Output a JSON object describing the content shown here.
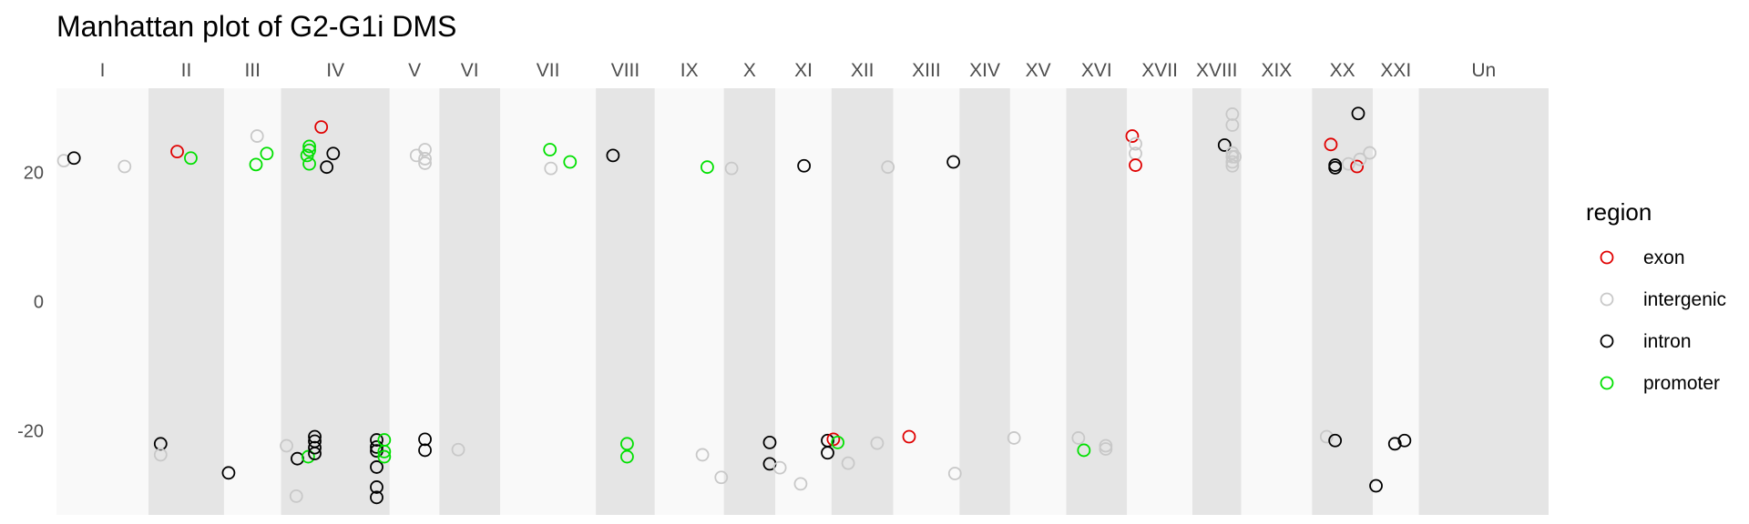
{
  "chart_data": {
    "type": "scatter",
    "title": "Manhattan plot of G2-G1i DMS",
    "xlabel": "",
    "ylabel": "",
    "ylim": [
      -33,
      33
    ],
    "yticks": [
      -20,
      0,
      20
    ],
    "grid": false,
    "legend_position": "right",
    "legend_title": "region",
    "legend": [
      {
        "name": "exon",
        "color": "#e00000"
      },
      {
        "name": "intergenic",
        "color": "#c8c8c8"
      },
      {
        "name": "intron",
        "color": "#000000"
      },
      {
        "name": "promoter",
        "color": "#00e000"
      }
    ],
    "panels": [
      {
        "label": "I",
        "width": 1.0
      },
      {
        "label": "II",
        "width": 0.82
      },
      {
        "label": "III",
        "width": 0.62
      },
      {
        "label": "IV",
        "width": 1.18
      },
      {
        "label": "V",
        "width": 0.54
      },
      {
        "label": "VI",
        "width": 0.66
      },
      {
        "label": "VII",
        "width": 1.04
      },
      {
        "label": "VIII",
        "width": 0.64
      },
      {
        "label": "IX",
        "width": 0.75
      },
      {
        "label": "X",
        "width": 0.56
      },
      {
        "label": "XI",
        "width": 0.61
      },
      {
        "label": "XII",
        "width": 0.67
      },
      {
        "label": "XIII",
        "width": 0.72
      },
      {
        "label": "XIV",
        "width": 0.55
      },
      {
        "label": "XV",
        "width": 0.61
      },
      {
        "label": "XVI",
        "width": 0.66
      },
      {
        "label": "XVII",
        "width": 0.71
      },
      {
        "label": "XVIII",
        "width": 0.53
      },
      {
        "label": "XIX",
        "width": 0.77
      },
      {
        "label": "XX",
        "width": 0.66
      },
      {
        "label": "XXI",
        "width": 0.5
      },
      {
        "label": "Un",
        "width": 1.41
      }
    ],
    "points": [
      {
        "chr": "I",
        "pos": 0.08,
        "y": 21.8,
        "region": "intergenic"
      },
      {
        "chr": "I",
        "pos": 0.19,
        "y": 22.2,
        "region": "intron"
      },
      {
        "chr": "I",
        "pos": 0.74,
        "y": 20.9,
        "region": "intergenic"
      },
      {
        "chr": "II",
        "pos": 0.38,
        "y": 23.2,
        "region": "exon"
      },
      {
        "chr": "II",
        "pos": 0.56,
        "y": 22.2,
        "region": "promoter"
      },
      {
        "chr": "II",
        "pos": 0.16,
        "y": -22.0,
        "region": "intron"
      },
      {
        "chr": "II",
        "pos": 0.16,
        "y": -23.7,
        "region": "intergenic"
      },
      {
        "chr": "III",
        "pos": 0.58,
        "y": 25.6,
        "region": "intergenic"
      },
      {
        "chr": "III",
        "pos": 0.75,
        "y": 22.9,
        "region": "promoter"
      },
      {
        "chr": "III",
        "pos": 0.56,
        "y": 21.2,
        "region": "promoter"
      },
      {
        "chr": "III",
        "pos": 0.08,
        "y": -26.5,
        "region": "intron"
      },
      {
        "chr": "IV",
        "pos": 0.37,
        "y": 27.0,
        "region": "exon"
      },
      {
        "chr": "IV",
        "pos": 0.26,
        "y": 24.0,
        "region": "promoter"
      },
      {
        "chr": "IV",
        "pos": 0.26,
        "y": 23.4,
        "region": "promoter"
      },
      {
        "chr": "IV",
        "pos": 0.24,
        "y": 22.6,
        "region": "promoter"
      },
      {
        "chr": "IV",
        "pos": 0.26,
        "y": 21.3,
        "region": "promoter"
      },
      {
        "chr": "IV",
        "pos": 0.42,
        "y": 20.8,
        "region": "intron"
      },
      {
        "chr": "IV",
        "pos": 0.48,
        "y": 22.9,
        "region": "intron"
      },
      {
        "chr": "IV",
        "pos": 0.05,
        "y": -22.3,
        "region": "intergenic"
      },
      {
        "chr": "IV",
        "pos": 0.15,
        "y": -24.3,
        "region": "intron"
      },
      {
        "chr": "IV",
        "pos": 0.25,
        "y": -24.0,
        "region": "promoter"
      },
      {
        "chr": "IV",
        "pos": 0.14,
        "y": -30.1,
        "region": "intergenic"
      },
      {
        "chr": "IV",
        "pos": 0.31,
        "y": -20.9,
        "region": "intron"
      },
      {
        "chr": "IV",
        "pos": 0.31,
        "y": -21.6,
        "region": "intron"
      },
      {
        "chr": "IV",
        "pos": 0.31,
        "y": -22.6,
        "region": "intron"
      },
      {
        "chr": "IV",
        "pos": 0.31,
        "y": -23.5,
        "region": "intron"
      },
      {
        "chr": "IV",
        "pos": 0.88,
        "y": -21.4,
        "region": "intron"
      },
      {
        "chr": "IV",
        "pos": 0.88,
        "y": -22.5,
        "region": "intron"
      },
      {
        "chr": "IV",
        "pos": 0.88,
        "y": -23.1,
        "region": "intron"
      },
      {
        "chr": "IV",
        "pos": 0.88,
        "y": -25.6,
        "region": "intron"
      },
      {
        "chr": "IV",
        "pos": 0.88,
        "y": -28.7,
        "region": "intron"
      },
      {
        "chr": "IV",
        "pos": 0.88,
        "y": -30.3,
        "region": "intron"
      },
      {
        "chr": "IV",
        "pos": 0.95,
        "y": -21.4,
        "region": "promoter"
      },
      {
        "chr": "IV",
        "pos": 0.95,
        "y": -23.2,
        "region": "promoter"
      },
      {
        "chr": "IV",
        "pos": 0.95,
        "y": -24.0,
        "region": "promoter"
      },
      {
        "chr": "V",
        "pos": 0.54,
        "y": 22.6,
        "region": "intergenic"
      },
      {
        "chr": "V",
        "pos": 0.71,
        "y": 23.5,
        "region": "intergenic"
      },
      {
        "chr": "V",
        "pos": 0.71,
        "y": 22.1,
        "region": "intergenic"
      },
      {
        "chr": "V",
        "pos": 0.71,
        "y": 21.4,
        "region": "intergenic"
      },
      {
        "chr": "V",
        "pos": 0.71,
        "y": -21.3,
        "region": "intron"
      },
      {
        "chr": "V",
        "pos": 0.71,
        "y": -23.0,
        "region": "intron"
      },
      {
        "chr": "VI",
        "pos": 0.31,
        "y": -22.9,
        "region": "intergenic"
      },
      {
        "chr": "VII",
        "pos": 0.52,
        "y": 23.5,
        "region": "promoter"
      },
      {
        "chr": "VII",
        "pos": 0.53,
        "y": 20.6,
        "region": "intergenic"
      },
      {
        "chr": "VII",
        "pos": 0.73,
        "y": 21.6,
        "region": "promoter"
      },
      {
        "chr": "VIII",
        "pos": 0.29,
        "y": 22.6,
        "region": "intron"
      },
      {
        "chr": "VIII",
        "pos": 0.53,
        "y": -22.0,
        "region": "promoter"
      },
      {
        "chr": "VIII",
        "pos": 0.53,
        "y": -24.0,
        "region": "promoter"
      },
      {
        "chr": "IX",
        "pos": 0.76,
        "y": 20.8,
        "region": "promoter"
      },
      {
        "chr": "IX",
        "pos": 0.69,
        "y": -23.7,
        "region": "intergenic"
      },
      {
        "chr": "X",
        "pos": 0.15,
        "y": 20.6,
        "region": "intergenic"
      },
      {
        "chr": "X",
        "pos": -0.05,
        "y": -27.2,
        "region": "intergenic"
      },
      {
        "chr": "X",
        "pos": 0.89,
        "y": -21.8,
        "region": "intron"
      },
      {
        "chr": "X",
        "pos": 0.89,
        "y": -25.1,
        "region": "intron"
      },
      {
        "chr": "XI",
        "pos": 0.51,
        "y": 21.0,
        "region": "intron"
      },
      {
        "chr": "XI",
        "pos": 0.08,
        "y": -25.7,
        "region": "intergenic"
      },
      {
        "chr": "XI",
        "pos": 0.45,
        "y": -28.2,
        "region": "intergenic"
      },
      {
        "chr": "XI",
        "pos": 0.93,
        "y": -21.5,
        "region": "intron"
      },
      {
        "chr": "XI",
        "pos": 0.93,
        "y": -23.4,
        "region": "intron"
      },
      {
        "chr": "XII",
        "pos": 0.03,
        "y": -21.3,
        "region": "exon"
      },
      {
        "chr": "XII",
        "pos": 0.1,
        "y": -21.8,
        "region": "promoter"
      },
      {
        "chr": "XII",
        "pos": 0.27,
        "y": -25.0,
        "region": "intergenic"
      },
      {
        "chr": "XII",
        "pos": 0.74,
        "y": -21.9,
        "region": "intergenic"
      },
      {
        "chr": "XIII",
        "pos": -0.08,
        "y": 20.8,
        "region": "intergenic"
      },
      {
        "chr": "XIII",
        "pos": 0.24,
        "y": -20.9,
        "region": "exon"
      },
      {
        "chr": "XIV",
        "pos": -0.12,
        "y": 21.6,
        "region": "intron"
      },
      {
        "chr": "XIV",
        "pos": -0.09,
        "y": -26.6,
        "region": "intergenic"
      },
      {
        "chr": "XV",
        "pos": 0.07,
        "y": -21.1,
        "region": "intergenic"
      },
      {
        "chr": "XVI",
        "pos": 0.2,
        "y": -21.1,
        "region": "intergenic"
      },
      {
        "chr": "XVI",
        "pos": 0.29,
        "y": -23.0,
        "region": "promoter"
      },
      {
        "chr": "XVI",
        "pos": 0.65,
        "y": -22.3,
        "region": "intergenic"
      },
      {
        "chr": "XVI",
        "pos": 0.65,
        "y": -22.8,
        "region": "intergenic"
      },
      {
        "chr": "XVII",
        "pos": 0.08,
        "y": 25.6,
        "region": "exon"
      },
      {
        "chr": "XVII",
        "pos": 0.13,
        "y": 24.4,
        "region": "intergenic"
      },
      {
        "chr": "XVII",
        "pos": 0.13,
        "y": 22.9,
        "region": "intergenic"
      },
      {
        "chr": "XVII",
        "pos": 0.13,
        "y": 21.1,
        "region": "exon"
      },
      {
        "chr": "XVIII",
        "pos": 0.66,
        "y": 24.2,
        "region": "intron"
      },
      {
        "chr": "XVIII",
        "pos": 0.82,
        "y": 29.0,
        "region": "intergenic"
      },
      {
        "chr": "XVIII",
        "pos": 0.82,
        "y": 27.3,
        "region": "intergenic"
      },
      {
        "chr": "XVIII",
        "pos": 0.82,
        "y": 23.0,
        "region": "intergenic"
      },
      {
        "chr": "XVIII",
        "pos": 0.82,
        "y": 22.4,
        "region": "intergenic"
      },
      {
        "chr": "XVIII",
        "pos": 0.82,
        "y": 21.6,
        "region": "intergenic"
      },
      {
        "chr": "XVIII",
        "pos": 0.82,
        "y": 21.0,
        "region": "intergenic"
      },
      {
        "chr": "XVIII",
        "pos": 0.87,
        "y": 22.4,
        "region": "intergenic"
      },
      {
        "chr": "XX",
        "pos": 0.31,
        "y": 24.3,
        "region": "exon"
      },
      {
        "chr": "XX",
        "pos": 0.38,
        "y": 21.1,
        "region": "intron"
      },
      {
        "chr": "XX",
        "pos": 0.38,
        "y": 20.7,
        "region": "intron"
      },
      {
        "chr": "XX",
        "pos": 0.6,
        "y": 21.3,
        "region": "intergenic"
      },
      {
        "chr": "XX",
        "pos": 0.74,
        "y": 20.9,
        "region": "exon"
      },
      {
        "chr": "XX",
        "pos": 0.76,
        "y": 29.1,
        "region": "intron"
      },
      {
        "chr": "XX",
        "pos": 0.79,
        "y": 22.0,
        "region": "intergenic"
      },
      {
        "chr": "XX",
        "pos": 0.95,
        "y": 23.0,
        "region": "intergenic"
      },
      {
        "chr": "XX",
        "pos": 0.24,
        "y": -20.9,
        "region": "intergenic"
      },
      {
        "chr": "XX",
        "pos": 0.38,
        "y": -21.5,
        "region": "intron"
      },
      {
        "chr": "XXI",
        "pos": 0.07,
        "y": -28.5,
        "region": "intron"
      },
      {
        "chr": "XXI",
        "pos": 0.48,
        "y": -22.0,
        "region": "intron"
      },
      {
        "chr": "XXI",
        "pos": 0.69,
        "y": -21.5,
        "region": "intron"
      }
    ]
  }
}
